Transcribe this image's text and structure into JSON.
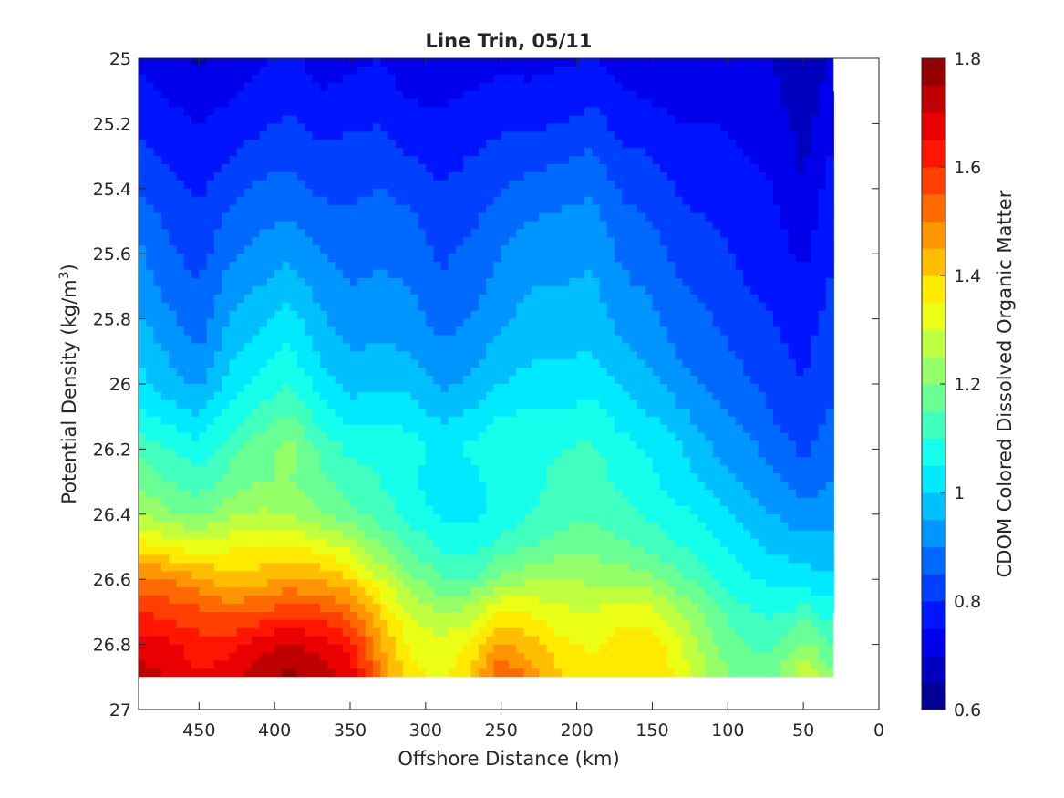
{
  "chart_data": {
    "type": "heatmap",
    "title": "Line Trin, 05/11",
    "xlabel": "Offshore Distance (km)",
    "ylabel": "Potential Density (kg/m",
    "ylabel_sup": "3",
    "ylabel_tail": ")",
    "colorbar_label": "CDOM Colored Dissolved Organic Matter",
    "x_axis": {
      "range": [
        490,
        0
      ],
      "reversed": true,
      "ticks": [
        450,
        400,
        350,
        300,
        250,
        200,
        150,
        100,
        50,
        0
      ]
    },
    "y_axis": {
      "range": [
        25,
        27
      ],
      "reversed": true,
      "ticks": [
        25,
        25.2,
        25.4,
        25.6,
        25.8,
        26,
        26.2,
        26.4,
        26.6,
        26.8,
        27
      ]
    },
    "colorbar": {
      "range": [
        0.6,
        1.8
      ],
      "ticks": [
        0.6,
        0.8,
        1,
        1.2,
        1.4,
        1.6,
        1.8
      ],
      "levels": 24,
      "colormap": "jet"
    },
    "x": [
      490,
      470,
      450,
      430,
      410,
      390,
      370,
      350,
      330,
      310,
      290,
      270,
      250,
      230,
      210,
      190,
      170,
      150,
      130,
      110,
      90,
      70,
      50,
      30
    ],
    "y": [
      25.0,
      25.1,
      25.2,
      25.3,
      25.4,
      25.5,
      25.6,
      25.7,
      25.8,
      25.9,
      26.0,
      26.1,
      26.2,
      26.3,
      26.4,
      26.5,
      26.6,
      26.7,
      26.8,
      26.9
    ],
    "z": [
      [
        0.74,
        0.72,
        0.69,
        0.72,
        0.74,
        0.76,
        0.73,
        0.74,
        0.75,
        0.73,
        0.72,
        0.73,
        0.74,
        0.73,
        0.74,
        0.75,
        0.73,
        0.72,
        0.72,
        0.72,
        0.71,
        0.7,
        0.67,
        0.71
      ],
      [
        0.76,
        0.74,
        0.72,
        0.74,
        0.76,
        0.78,
        0.75,
        0.76,
        0.77,
        0.74,
        0.74,
        0.75,
        0.76,
        0.76,
        0.77,
        0.78,
        0.75,
        0.74,
        0.73,
        0.73,
        0.72,
        0.71,
        0.67,
        0.72
      ],
      [
        0.79,
        0.77,
        0.75,
        0.77,
        0.79,
        0.81,
        0.78,
        0.79,
        0.8,
        0.77,
        0.76,
        0.77,
        0.79,
        0.79,
        0.8,
        0.82,
        0.78,
        0.77,
        0.75,
        0.75,
        0.74,
        0.72,
        0.68,
        0.74
      ],
      [
        0.82,
        0.79,
        0.77,
        0.8,
        0.82,
        0.84,
        0.81,
        0.82,
        0.82,
        0.8,
        0.78,
        0.8,
        0.82,
        0.83,
        0.84,
        0.86,
        0.81,
        0.8,
        0.77,
        0.77,
        0.75,
        0.74,
        0.69,
        0.76
      ],
      [
        0.85,
        0.82,
        0.79,
        0.83,
        0.86,
        0.87,
        0.84,
        0.84,
        0.85,
        0.83,
        0.8,
        0.82,
        0.85,
        0.87,
        0.88,
        0.89,
        0.84,
        0.83,
        0.79,
        0.78,
        0.77,
        0.75,
        0.7,
        0.78
      ],
      [
        0.88,
        0.84,
        0.81,
        0.86,
        0.89,
        0.9,
        0.87,
        0.86,
        0.87,
        0.86,
        0.82,
        0.84,
        0.88,
        0.9,
        0.91,
        0.92,
        0.87,
        0.85,
        0.81,
        0.8,
        0.78,
        0.76,
        0.72,
        0.79
      ],
      [
        0.91,
        0.86,
        0.83,
        0.89,
        0.92,
        0.94,
        0.9,
        0.88,
        0.89,
        0.88,
        0.84,
        0.86,
        0.9,
        0.93,
        0.93,
        0.94,
        0.89,
        0.87,
        0.83,
        0.82,
        0.79,
        0.77,
        0.74,
        0.8
      ],
      [
        0.93,
        0.88,
        0.85,
        0.92,
        0.95,
        0.98,
        0.93,
        0.9,
        0.91,
        0.9,
        0.86,
        0.88,
        0.92,
        0.95,
        0.95,
        0.96,
        0.91,
        0.89,
        0.85,
        0.83,
        0.8,
        0.78,
        0.76,
        0.81
      ],
      [
        0.96,
        0.91,
        0.87,
        0.95,
        0.99,
        1.02,
        0.96,
        0.92,
        0.93,
        0.92,
        0.88,
        0.9,
        0.94,
        0.97,
        0.97,
        0.98,
        0.93,
        0.91,
        0.87,
        0.85,
        0.82,
        0.8,
        0.78,
        0.82
      ],
      [
        0.99,
        0.94,
        0.9,
        0.98,
        1.02,
        1.06,
        0.99,
        0.95,
        0.96,
        0.95,
        0.91,
        0.93,
        0.97,
        0.99,
        0.99,
        1.0,
        0.96,
        0.93,
        0.89,
        0.87,
        0.84,
        0.81,
        0.79,
        0.83
      ],
      [
        1.02,
        0.97,
        0.94,
        1.02,
        1.06,
        1.1,
        1.03,
        0.98,
        0.99,
        0.98,
        0.94,
        0.96,
        1.0,
        1.02,
        1.02,
        1.03,
        0.99,
        0.96,
        0.92,
        0.89,
        0.86,
        0.83,
        0.8,
        0.84
      ],
      [
        1.07,
        1.03,
        1.0,
        1.07,
        1.12,
        1.16,
        1.08,
        1.03,
        1.04,
        1.03,
        0.99,
        1.01,
        1.05,
        1.06,
        1.06,
        1.07,
        1.03,
        1.0,
        0.96,
        0.92,
        0.89,
        0.85,
        0.82,
        0.86
      ],
      [
        1.14,
        1.1,
        1.07,
        1.13,
        1.18,
        1.22,
        1.14,
        1.09,
        1.09,
        1.07,
        1.03,
        1.06,
        1.09,
        1.09,
        1.1,
        1.11,
        1.07,
        1.04,
        1.0,
        0.95,
        0.92,
        0.88,
        0.84,
        0.88
      ],
      [
        1.19,
        1.15,
        1.12,
        1.17,
        1.2,
        1.2,
        1.16,
        1.12,
        1.1,
        1.06,
        1.02,
        1.03,
        1.08,
        1.09,
        1.11,
        1.12,
        1.09,
        1.06,
        1.02,
        0.98,
        0.95,
        0.91,
        0.87,
        0.9
      ],
      [
        1.25,
        1.21,
        1.19,
        1.24,
        1.26,
        1.25,
        1.21,
        1.17,
        1.13,
        1.08,
        1.04,
        1.03,
        1.07,
        1.1,
        1.13,
        1.14,
        1.12,
        1.09,
        1.06,
        1.02,
        0.98,
        0.95,
        0.92,
        0.93
      ],
      [
        1.38,
        1.34,
        1.32,
        1.34,
        1.35,
        1.36,
        1.33,
        1.28,
        1.2,
        1.14,
        1.09,
        1.08,
        1.12,
        1.15,
        1.18,
        1.18,
        1.16,
        1.13,
        1.1,
        1.06,
        1.02,
        0.99,
        0.97,
        0.97
      ],
      [
        1.52,
        1.5,
        1.46,
        1.42,
        1.43,
        1.46,
        1.44,
        1.4,
        1.3,
        1.21,
        1.16,
        1.15,
        1.22,
        1.24,
        1.25,
        1.24,
        1.23,
        1.21,
        1.16,
        1.11,
        1.06,
        1.04,
        1.02,
        1.01
      ],
      [
        1.6,
        1.58,
        1.56,
        1.54,
        1.55,
        1.58,
        1.57,
        1.53,
        1.4,
        1.29,
        1.25,
        1.27,
        1.36,
        1.34,
        1.31,
        1.3,
        1.33,
        1.32,
        1.24,
        1.17,
        1.11,
        1.09,
        1.12,
        1.07
      ],
      [
        1.68,
        1.66,
        1.62,
        1.62,
        1.68,
        1.71,
        1.68,
        1.63,
        1.46,
        1.34,
        1.31,
        1.36,
        1.46,
        1.42,
        1.36,
        1.34,
        1.38,
        1.38,
        1.3,
        1.21,
        1.15,
        1.14,
        1.22,
        1.15
      ],
      [
        1.72,
        1.7,
        1.66,
        1.68,
        1.74,
        1.76,
        1.73,
        1.68,
        1.5,
        1.37,
        1.34,
        1.4,
        1.56,
        1.48,
        1.4,
        1.37,
        1.4,
        1.4,
        1.33,
        1.24,
        1.17,
        1.17,
        1.3,
        1.2
      ]
    ],
    "grid": false
  }
}
